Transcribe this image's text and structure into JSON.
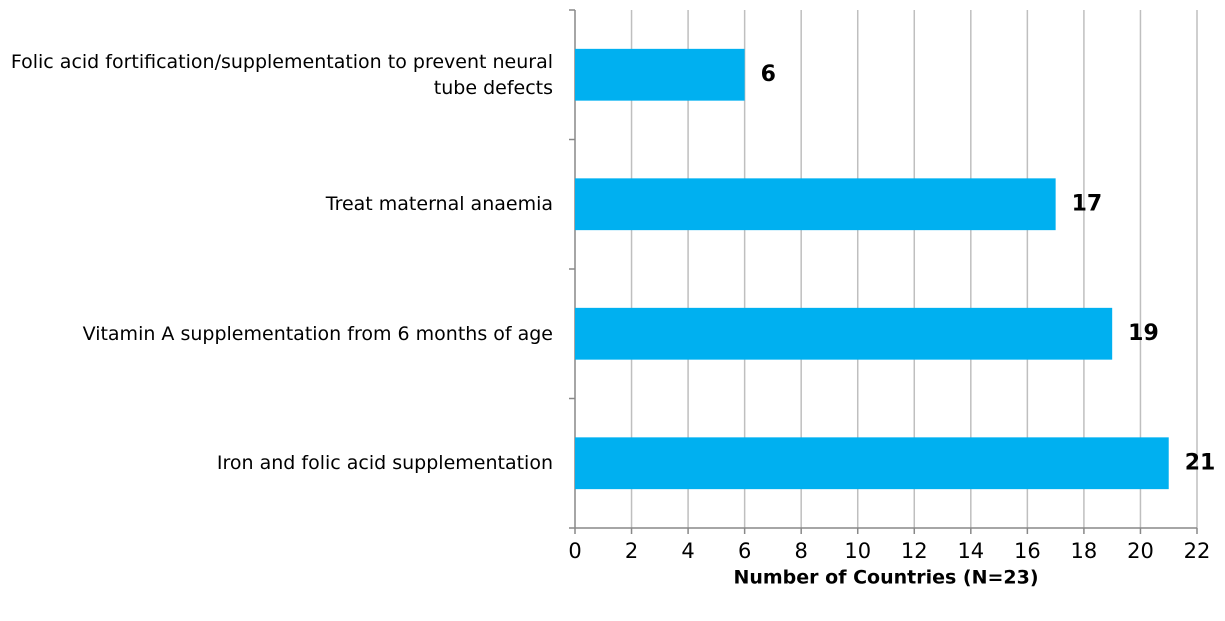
{
  "chart_data": {
    "type": "bar",
    "orientation": "horizontal",
    "categories": [
      "Folic acid fortification/supplementation to prevent neural tube defects",
      "Treat maternal anaemia",
      "Vitamin A supplementation from 6 months of age",
      "Iron and folic acid supplementation"
    ],
    "values": [
      6,
      17,
      19,
      21
    ],
    "color": "#00b0f0",
    "xlabel": "Number of Countries (N=23)",
    "xlim": [
      0,
      22
    ],
    "xticks": [
      0,
      2,
      4,
      6,
      8,
      10,
      12,
      14,
      16,
      18,
      20,
      22
    ],
    "grid": true
  }
}
